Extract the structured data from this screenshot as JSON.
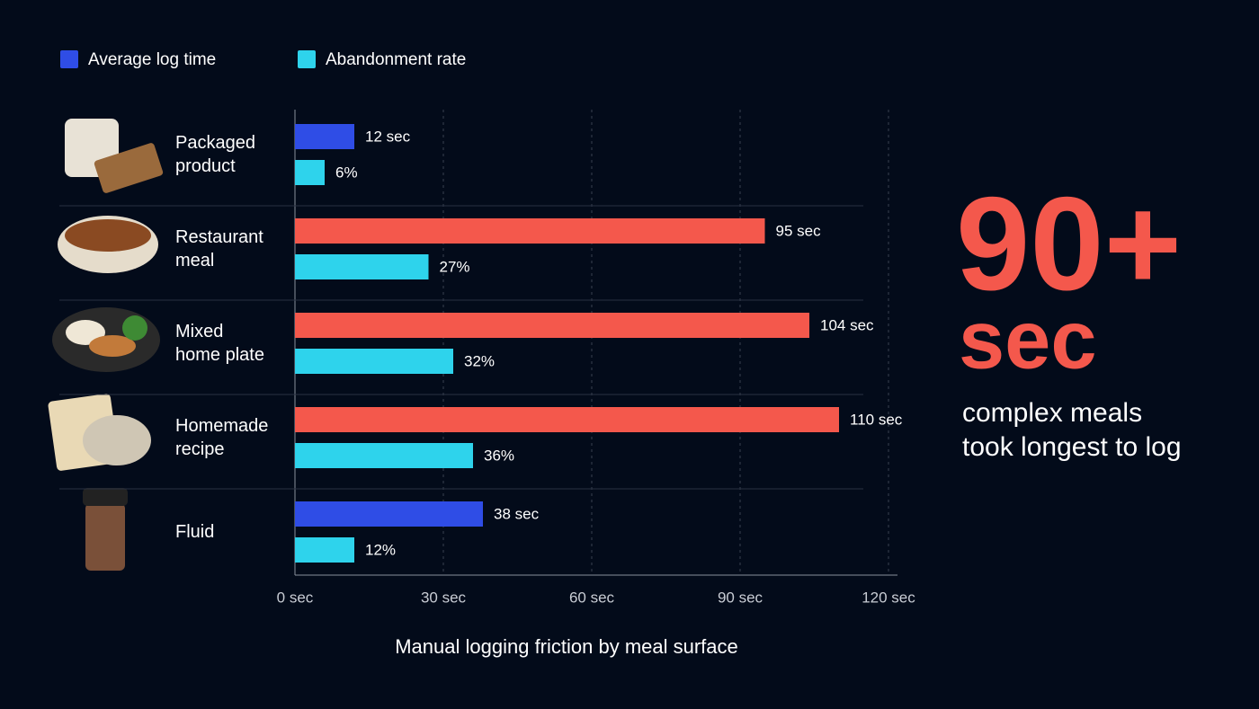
{
  "chart_data": {
    "type": "hbar",
    "title": "Manual logging friction by meal surface",
    "categories": [
      "Packaged\nproduct",
      "Restaurant\nmeal",
      "Mixed\nhome plate",
      "Homemade\nrecipe",
      "Fluid"
    ],
    "series": [
      {
        "name": "Average log time",
        "color": "#2f4de6",
        "colors": [
          "#2f4de6",
          "#f4584c",
          "#f4584c",
          "#f4584c",
          "#2f4de6"
        ],
        "values": [
          12,
          95,
          104,
          110,
          38
        ],
        "value_labels": [
          "12 sec",
          "95 sec",
          "104 sec",
          "110 sec",
          "38 sec"
        ]
      },
      {
        "name": "Abandonment rate",
        "color": "#2ed3ec",
        "values": [
          6,
          27,
          32,
          36,
          12
        ],
        "value_labels": [
          "6%",
          "27%",
          "32%",
          "36%",
          "12%"
        ]
      }
    ],
    "xlim": [
      0,
      120
    ],
    "xticks": [
      {
        "value": 0,
        "label": "0 sec"
      },
      {
        "value": 30,
        "label": "30 sec"
      },
      {
        "value": 60,
        "label": "60 sec"
      },
      {
        "value": 90,
        "label": "90 sec"
      },
      {
        "value": 120,
        "label": "120 sec"
      }
    ],
    "grid": true,
    "legend": "top",
    "annotations": [
      "90+",
      "sec",
      "complex meals",
      "took longest to log"
    ]
  }
}
